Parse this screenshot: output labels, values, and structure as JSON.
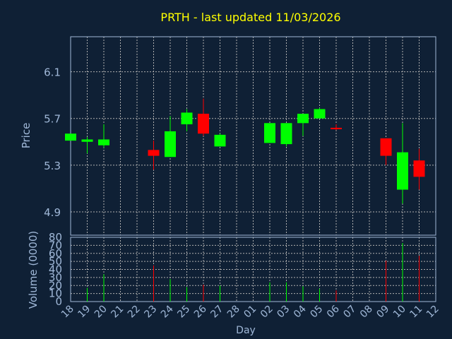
{
  "chart_data": {
    "type": "candlestick",
    "title": "PRTH - last updated 11/03/2026",
    "xlabel": "Day",
    "ylabel_price": "Price",
    "ylabel_volume": "Volume (0000)",
    "price_ylim": [
      4.7,
      6.4
    ],
    "price_ticks": [
      "4.9",
      "5.3",
      "5.7",
      "6.1"
    ],
    "volume_ylim": [
      0,
      80
    ],
    "volume_ticks": [
      "0",
      "10",
      "20",
      "30",
      "40",
      "50",
      "60",
      "70",
      "80"
    ],
    "x_ticks": [
      "18",
      "19",
      "20",
      "21",
      "22",
      "23",
      "24",
      "25",
      "26",
      "27",
      "28",
      "01",
      "02",
      "03",
      "04",
      "05",
      "06",
      "07",
      "08",
      "09",
      "10",
      "11",
      "12"
    ],
    "grid": true,
    "colors": {
      "up": "#00ff00",
      "down": "#ff0000",
      "background": "#0f2035",
      "title": "#ffff00",
      "axis_text": "#a0b8d8",
      "grid": "#b0b0b0"
    },
    "candles": [
      {
        "day": "18",
        "open": 5.51,
        "high": 5.57,
        "low": 5.51,
        "close": 5.57
      },
      {
        "day": "19",
        "open": 5.5,
        "high": 5.54,
        "low": 5.4,
        "close": 5.52
      },
      {
        "day": "20",
        "open": 5.47,
        "high": 5.65,
        "low": 5.45,
        "close": 5.52
      },
      {
        "day": "23",
        "open": 5.43,
        "high": 5.51,
        "low": 5.26,
        "close": 5.38
      },
      {
        "day": "24",
        "open": 5.37,
        "high": 5.72,
        "low": 5.37,
        "close": 5.59
      },
      {
        "day": "25",
        "open": 5.65,
        "high": 5.78,
        "low": 5.59,
        "close": 5.75
      },
      {
        "day": "26",
        "open": 5.74,
        "high": 5.87,
        "low": 5.55,
        "close": 5.57
      },
      {
        "day": "27",
        "open": 5.46,
        "high": 5.57,
        "low": 5.46,
        "close": 5.56
      },
      {
        "day": "02",
        "open": 5.49,
        "high": 5.66,
        "low": 5.49,
        "close": 5.66
      },
      {
        "day": "03",
        "open": 5.48,
        "high": 5.66,
        "low": 5.46,
        "close": 5.66
      },
      {
        "day": "04",
        "open": 5.66,
        "high": 5.74,
        "low": 5.55,
        "close": 5.74
      },
      {
        "day": "05",
        "open": 5.7,
        "high": 5.79,
        "low": 5.7,
        "close": 5.78
      },
      {
        "day": "06",
        "open": 5.62,
        "high": 5.65,
        "low": 5.6,
        "close": 5.61
      },
      {
        "day": "09",
        "open": 5.53,
        "high": 5.53,
        "low": 5.3,
        "close": 5.38
      },
      {
        "day": "10",
        "open": 5.09,
        "high": 5.66,
        "low": 4.97,
        "close": 5.41
      },
      {
        "day": "11",
        "open": 5.34,
        "high": 5.44,
        "low": 5.09,
        "close": 5.2
      }
    ],
    "volume": [
      {
        "day": "19",
        "value": 17,
        "dir": "up"
      },
      {
        "day": "20",
        "value": 34,
        "dir": "up"
      },
      {
        "day": "23",
        "value": 45,
        "dir": "down"
      },
      {
        "day": "24",
        "value": 28,
        "dir": "up"
      },
      {
        "day": "25",
        "value": 18,
        "dir": "up"
      },
      {
        "day": "26",
        "value": 21,
        "dir": "down"
      },
      {
        "day": "27",
        "value": 20,
        "dir": "up"
      },
      {
        "day": "02",
        "value": 24,
        "dir": "up"
      },
      {
        "day": "03",
        "value": 24,
        "dir": "up"
      },
      {
        "day": "04",
        "value": 19,
        "dir": "up"
      },
      {
        "day": "05",
        "value": 16,
        "dir": "up"
      },
      {
        "day": "06",
        "value": 14,
        "dir": "down"
      },
      {
        "day": "09",
        "value": 51,
        "dir": "down"
      },
      {
        "day": "10",
        "value": 73,
        "dir": "up"
      },
      {
        "day": "11",
        "value": 57,
        "dir": "down"
      }
    ]
  }
}
